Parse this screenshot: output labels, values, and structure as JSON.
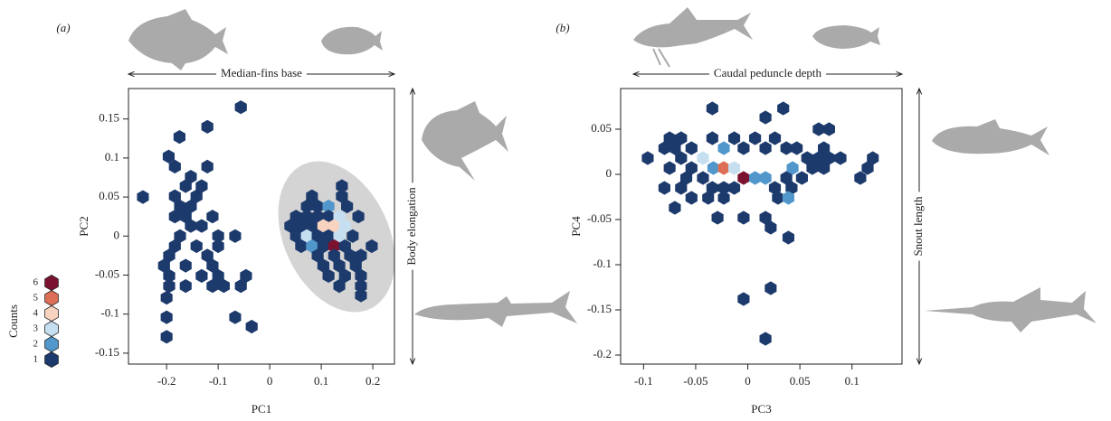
{
  "chart_data": [
    {
      "type": "hexbin",
      "panel_label": "(a)",
      "top_label": "Median-fins base",
      "right_label": "Body elongation",
      "x_label": "PC1",
      "y_label": "PC2",
      "xlim": [
        -0.274,
        0.242
      ],
      "ylim": [
        -0.164,
        0.189
      ],
      "xticks": [
        -0.2,
        -0.1,
        0,
        0.1,
        0.2
      ],
      "yticks": [
        -0.15,
        -0.1,
        -0.05,
        0,
        0.05,
        0.1,
        0.15
      ],
      "x": [
        -0.246,
        -0.056,
        -0.121,
        -0.175,
        -0.196,
        -0.184,
        -0.121,
        -0.153,
        -0.132,
        -0.163,
        -0.184,
        -0.142,
        -0.174,
        -0.153,
        -0.163,
        -0.111,
        -0.184,
        -0.153,
        -0.132,
        -0.174,
        -0.1,
        -0.067,
        -0.184,
        -0.142,
        -0.1,
        -0.195,
        -0.121,
        -0.205,
        -0.163,
        -0.111,
        -0.195,
        -0.132,
        -0.1,
        -0.046,
        -0.195,
        -0.163,
        -0.111,
        -0.089,
        -0.056,
        -0.2,
        -0.2,
        -0.067,
        -0.035,
        -0.2,
        0.14,
        0.082,
        0.14,
        0.072,
        0.093,
        0.114,
        0.15,
        0.051,
        0.072,
        0.093,
        0.114,
        0.135,
        0.172,
        0.04,
        0.061,
        0.082,
        0.104,
        0.125,
        0.146,
        0.051,
        0.072,
        0.093,
        0.114,
        0.135,
        0.161,
        0.061,
        0.082,
        0.104,
        0.125,
        0.146,
        0.198,
        0.093,
        0.125,
        0.156,
        0.177,
        0.104,
        0.135,
        0.167,
        0.114,
        0.146,
        0.177,
        0.135,
        0.177,
        0.177
      ],
      "y": [
        0.05,
        0.165,
        0.14,
        0.127,
        0.102,
        0.089,
        0.089,
        0.076,
        0.064,
        0.064,
        0.051,
        0.051,
        0.038,
        0.038,
        0.025,
        0.025,
        0.025,
        0.013,
        0.013,
        0,
        0,
        0,
        -0.013,
        -0.013,
        -0.013,
        -0.025,
        -0.025,
        -0.038,
        -0.038,
        -0.038,
        -0.051,
        -0.051,
        -0.051,
        -0.051,
        -0.064,
        -0.064,
        -0.064,
        -0.064,
        -0.064,
        -0.079,
        -0.104,
        -0.104,
        -0.116,
        -0.129,
        0.064,
        0.051,
        0.051,
        0.038,
        0.038,
        0.038,
        0.038,
        0.025,
        0.025,
        0.025,
        0.025,
        0.025,
        0.025,
        0.013,
        0.013,
        0.013,
        0.013,
        0.013,
        0.013,
        0,
        0,
        0,
        0,
        0,
        0,
        -0.013,
        -0.013,
        -0.013,
        -0.013,
        -0.013,
        -0.013,
        -0.025,
        -0.025,
        -0.025,
        -0.025,
        -0.038,
        -0.038,
        -0.038,
        -0.051,
        -0.051,
        -0.051,
        -0.064,
        -0.064,
        -0.076
      ],
      "values": [
        1,
        1,
        1,
        1,
        1,
        1,
        1,
        1,
        1,
        1,
        1,
        1,
        1,
        1,
        1,
        1,
        1,
        1,
        1,
        1,
        1,
        1,
        1,
        1,
        1,
        1,
        1,
        1,
        1,
        1,
        1,
        1,
        1,
        1,
        1,
        1,
        1,
        1,
        1,
        1,
        1,
        1,
        1,
        1,
        1,
        1,
        1,
        1,
        1,
        2,
        1,
        1,
        1,
        1,
        1,
        3,
        1,
        1,
        1,
        1,
        4,
        4,
        3,
        1,
        3,
        1,
        1,
        3,
        1,
        1,
        2,
        1,
        6,
        1,
        1,
        1,
        1,
        1,
        1,
        1,
        1,
        1,
        1,
        1,
        1,
        1,
        1,
        1
      ],
      "legend": {
        "title": "Counts",
        "levels": [
          6,
          5,
          4,
          3,
          2,
          1
        ],
        "colors": [
          "#7b1230",
          "#dc6f55",
          "#f8d4c0",
          "#c5dff0",
          "#5297cb",
          "#1d3a6c"
        ]
      }
    },
    {
      "type": "hexbin",
      "panel_label": "(b)",
      "top_label": "Caudal peduncle depth",
      "right_label": "Snout length",
      "x_label": "PC3",
      "y_label": "PC4",
      "xlim": [
        -0.122,
        0.148
      ],
      "ylim": [
        -0.21,
        0.095
      ],
      "xticks": [
        -0.1,
        -0.05,
        0,
        0.05,
        0.1
      ],
      "yticks": [
        -0.2,
        -0.15,
        -0.1,
        -0.05,
        0,
        0.05
      ],
      "x": [
        -0.096,
        -0.075,
        -0.064,
        -0.08,
        -0.07,
        -0.054,
        -0.034,
        -0.023,
        -0.013,
        -0.004,
        0.007,
        0.017,
        0.026,
        0.037,
        0.047,
        0.068,
        0.078,
        0.073,
        0.057,
        0.068,
        0.078,
        0.089,
        0.062,
        0.073,
        0.12,
        0.115,
        0.108,
        -0.034,
        0.017,
        0.034,
        -0.075,
        -0.064,
        -0.043,
        -0.033,
        -0.023,
        -0.013,
        -0.004,
        0.007,
        0.017,
        0.043,
        -0.054,
        -0.059,
        -0.043,
        -0.08,
        -0.064,
        -0.034,
        -0.013,
        0.037,
        0.052,
        0.026,
        0.042,
        -0.023,
        -0.038,
        -0.023,
        0.029,
        0.039,
        -0.07,
        -0.054,
        -0.029,
        -0.004,
        0.017,
        0.022,
        0.039,
        -0.004,
        0.022,
        0.017
      ],
      "y": [
        0.018,
        0.04,
        0.04,
        0.029,
        0.029,
        0.029,
        0.04,
        0.029,
        0.04,
        0.029,
        0.04,
        0.029,
        0.04,
        0.029,
        0.029,
        0.05,
        0.05,
        0.029,
        0.018,
        0.018,
        0.018,
        0.018,
        0.007,
        0.007,
        0.018,
        0.007,
        -0.004,
        0.073,
        0.063,
        0.073,
        0.007,
        0.018,
        0.018,
        0.007,
        0.007,
        0.007,
        -0.004,
        -0.004,
        -0.004,
        0.007,
        0.007,
        -0.004,
        -0.004,
        -0.015,
        -0.015,
        -0.015,
        -0.015,
        -0.004,
        -0.004,
        -0.015,
        -0.015,
        -0.015,
        -0.026,
        -0.026,
        -0.026,
        -0.026,
        -0.037,
        -0.026,
        -0.048,
        -0.048,
        -0.048,
        -0.059,
        -0.07,
        -0.138,
        -0.126,
        -0.182
      ],
      "values": [
        1,
        1,
        1,
        1,
        1,
        1,
        1,
        2,
        1,
        1,
        1,
        1,
        1,
        1,
        1,
        1,
        1,
        1,
        1,
        1,
        1,
        1,
        1,
        1,
        1,
        1,
        1,
        1,
        1,
        1,
        1,
        1,
        3,
        2,
        5,
        3,
        6,
        2,
        2,
        2,
        1,
        1,
        1,
        1,
        1,
        1,
        1,
        1,
        1,
        1,
        1,
        1,
        1,
        1,
        1,
        2,
        1,
        1,
        1,
        1,
        1,
        1,
        1,
        1,
        1,
        1
      ]
    }
  ]
}
